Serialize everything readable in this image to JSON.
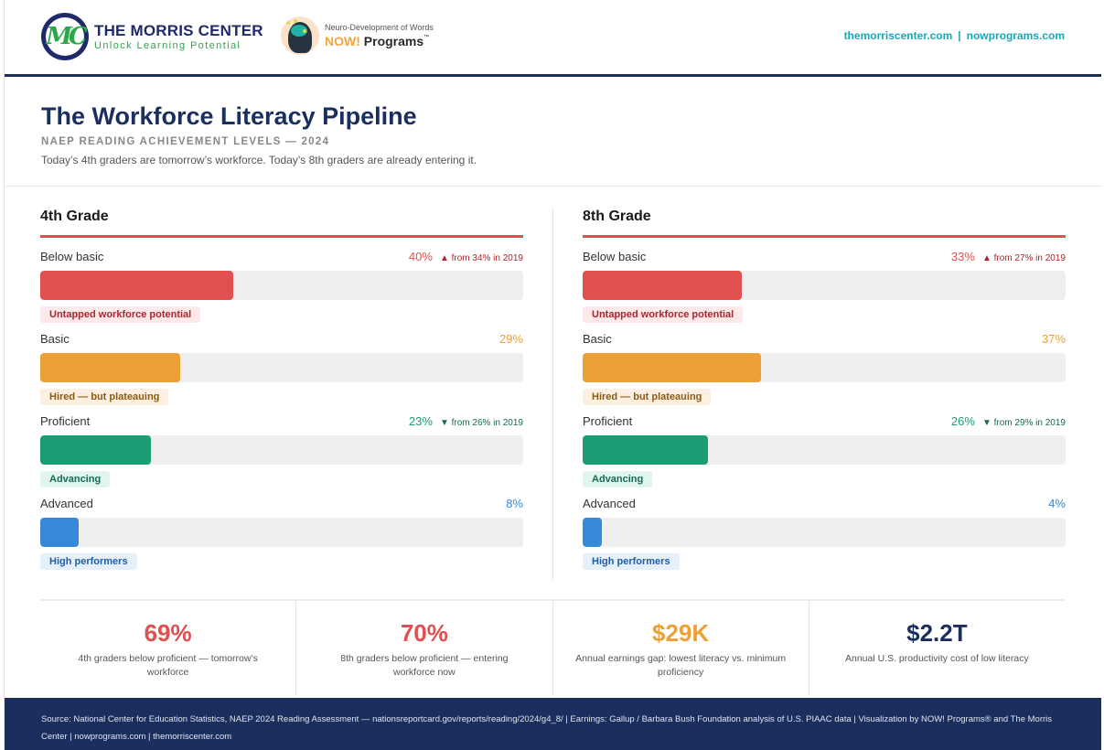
{
  "header": {
    "morris_logo": {
      "mark": "MC",
      "title": "THE MORRIS CENTER",
      "tagline": "Unlock Learning Potential"
    },
    "now_logo": {
      "tagline": "Neuro-Development of Words",
      "brand_now": "NOW!",
      "brand_rest": "Programs",
      "trademark": "™"
    },
    "links": [
      {
        "label": "themorriscenter.com"
      },
      {
        "label": "nowprograms.com"
      }
    ],
    "link_separator": "|"
  },
  "title": {
    "main": "The Workforce Literacy Pipeline",
    "kicker": "NAEP READING ACHIEVEMENT LEVELS — 2024",
    "subtitle": "Today’s 4th graders are tomorrow’s workforce. Today’s 8th graders are already entering it."
  },
  "colors": {
    "navy": "#1b2f5e",
    "red": "#e05050",
    "orange": "#eda035",
    "green": "#1c9c75",
    "blue": "#3688db",
    "teal_link": "#1aa7b8"
  },
  "chart_data": {
    "type": "bar",
    "orientation": "horizontal",
    "title": "NAEP Reading Achievement Levels — 2024",
    "xlim": [
      0,
      100
    ],
    "unit": "%",
    "categories": [
      "Below basic",
      "Basic",
      "Proficient",
      "Advanced"
    ],
    "panels": [
      {
        "name": "4th Grade",
        "levels": [
          {
            "label": "Below basic",
            "value": 40,
            "value_text": "40%",
            "change": "▲ from 34% in 2019",
            "tag": "Untapped workforce potential",
            "color": "#e05050",
            "text_color": "#e05050",
            "change_color": "#a8262e",
            "tag_bg": "#fde9e9",
            "tag_color": "#a8262e"
          },
          {
            "label": "Basic",
            "value": 29,
            "value_text": "29%",
            "change": "",
            "tag": "Hired — but plateauing",
            "color": "#eda035",
            "text_color": "#eda035",
            "change_color": "#8a5a12",
            "tag_bg": "#fdf0e2",
            "tag_color": "#8a5a12"
          },
          {
            "label": "Proficient",
            "value": 23,
            "value_text": "23%",
            "change": "▼ from 26% in 2019",
            "tag": "Advancing",
            "color": "#1c9c75",
            "text_color": "#1c9c75",
            "change_color": "#146b55",
            "tag_bg": "#e2f4ee",
            "tag_color": "#146b55"
          },
          {
            "label": "Advanced",
            "value": 8,
            "value_text": "8%",
            "change": "",
            "tag": "High performers",
            "color": "#3688db",
            "text_color": "#3688db",
            "change_color": "#1d5fa6",
            "tag_bg": "#e5f0fb",
            "tag_color": "#1d5fa6"
          }
        ]
      },
      {
        "name": "8th Grade",
        "levels": [
          {
            "label": "Below basic",
            "value": 33,
            "value_text": "33%",
            "change": "▲ from 27% in 2019",
            "tag": "Untapped workforce potential",
            "color": "#e05050",
            "text_color": "#e05050",
            "change_color": "#a8262e",
            "tag_bg": "#fde9e9",
            "tag_color": "#a8262e"
          },
          {
            "label": "Basic",
            "value": 37,
            "value_text": "37%",
            "change": "",
            "tag": "Hired — but plateauing",
            "color": "#eda035",
            "text_color": "#eda035",
            "change_color": "#8a5a12",
            "tag_bg": "#fdf0e2",
            "tag_color": "#8a5a12"
          },
          {
            "label": "Proficient",
            "value": 26,
            "value_text": "26%",
            "change": "▼ from 29% in 2019",
            "tag": "Advancing",
            "color": "#1c9c75",
            "text_color": "#1c9c75",
            "change_color": "#146b55",
            "tag_bg": "#e2f4ee",
            "tag_color": "#146b55"
          },
          {
            "label": "Advanced",
            "value": 4,
            "value_text": "4%",
            "change": "",
            "tag": "High performers",
            "color": "#3688db",
            "text_color": "#3688db",
            "change_color": "#1d5fa6",
            "tag_bg": "#e5f0fb",
            "tag_color": "#1d5fa6"
          }
        ]
      }
    ]
  },
  "stats": [
    {
      "value": "69%",
      "label": "4th graders below proficient — tomorrow’s workforce",
      "color": "#e05050"
    },
    {
      "value": "70%",
      "label": "8th graders below proficient — entering workforce now",
      "color": "#e05050"
    },
    {
      "value": "$29K",
      "label": "Annual earnings gap: lowest literacy vs. minimum proficiency",
      "color": "#eda035"
    },
    {
      "value": "$2.2T",
      "label": "Annual U.S. productivity cost of low literacy",
      "color": "#1b2f5e"
    }
  ],
  "footer": {
    "text": "Source: National Center for Education Statistics, NAEP 2024 Reading Assessment — nationsreportcard.gov/reports/reading/2024/g4_8/  |  Earnings: Gallup / Barbara Bush Foundation analysis of U.S. PIAAC data  |  Visualization by NOW! Programs® and The Morris Center  |  nowprograms.com  |  themorriscenter.com"
  }
}
